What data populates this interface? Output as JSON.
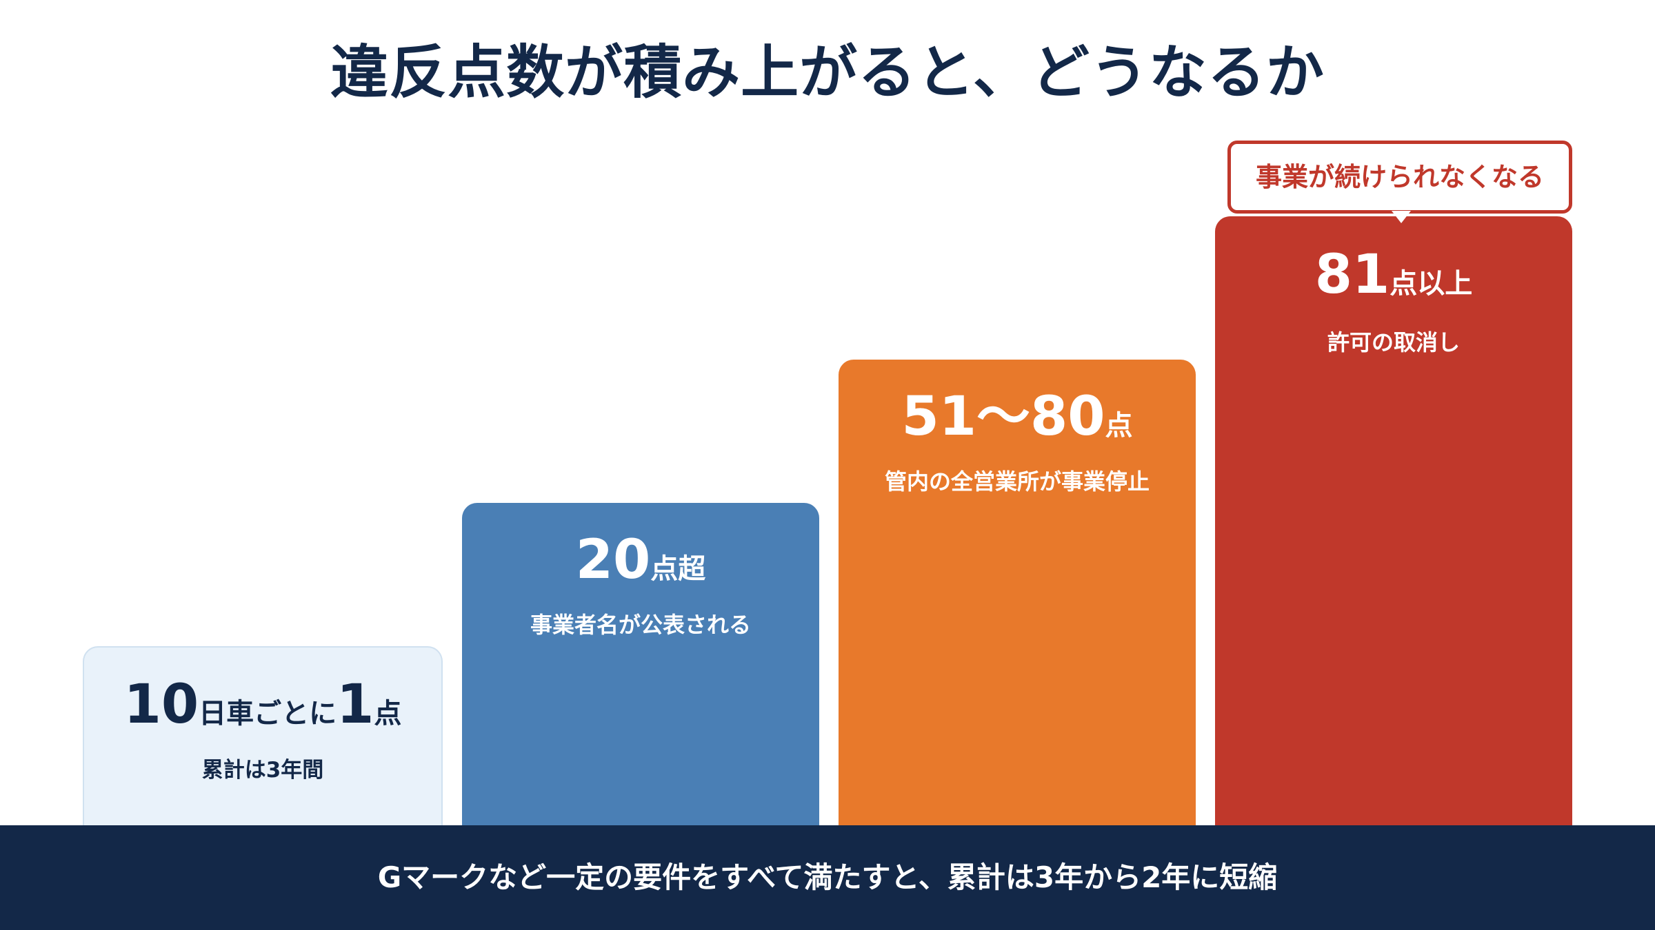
{
  "title": "違反点数が積み上がると、どうなるか",
  "steps": [
    {
      "value_parts": [
        "10",
        "日車ごとに",
        "1",
        "点"
      ],
      "description": "累計は3年間",
      "color": "#e9f2fa"
    },
    {
      "value_parts": [
        "20",
        "点超"
      ],
      "description": "事業者名が公表される",
      "color": "#4a7fb5"
    },
    {
      "value_parts": [
        "51〜80",
        "点"
      ],
      "description": "管内の全営業所が事業停止",
      "color": "#e8792b"
    },
    {
      "value_parts": [
        "81",
        "点以上"
      ],
      "description": "許可の取消し",
      "color": "#c0382b",
      "callout": "事業が続けられなくなる"
    }
  ],
  "footer": "Gマークなど一定の要件をすべて満たすと、累計は3年から2年に短縮",
  "colors": {
    "navy": "#132848",
    "blue": "#4a7fb5",
    "orange": "#e8792b",
    "red": "#c0382b",
    "light_blue": "#e9f2fa"
  }
}
